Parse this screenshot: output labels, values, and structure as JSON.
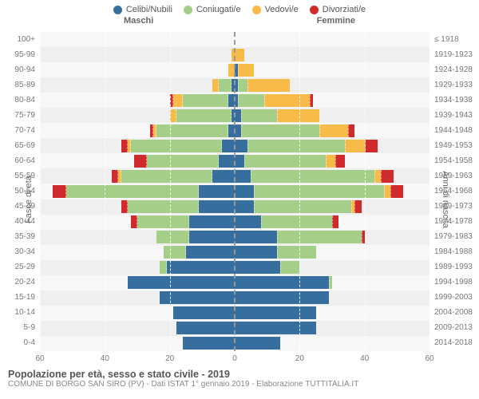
{
  "legend": [
    {
      "label": "Celibi/Nubili",
      "color": "#366f9e"
    },
    {
      "label": "Coniugati/e",
      "color": "#a5ce88"
    },
    {
      "label": "Vedovi/e",
      "color": "#f8bb4a"
    },
    {
      "label": "Divorziati/e",
      "color": "#cf2b2d"
    }
  ],
  "gender_left": "Maschi",
  "gender_right": "Femmine",
  "y_left_title": "Fasce di età",
  "y_right_title": "Anni di nascita",
  "x_ticks": [
    60,
    40,
    20,
    0,
    20,
    40,
    60
  ],
  "x_max": 60,
  "colors": {
    "bg": "#f7f7f7",
    "bg_alt": "#efefef",
    "grid": "rgba(255,255,255,0.9)",
    "center": "#999999",
    "text": "#777777"
  },
  "categories": [
    "celibi",
    "coniugati",
    "vedovi",
    "divorziati"
  ],
  "category_colors": {
    "celibi": "#366f9e",
    "coniugati": "#a5ce88",
    "vedovi": "#f8bb4a",
    "divorziati": "#cf2b2d"
  },
  "rows": [
    {
      "age": "100+",
      "birth": "≤ 1918",
      "m": [
        0,
        0,
        0,
        0
      ],
      "f": [
        0,
        0,
        0,
        0
      ]
    },
    {
      "age": "95-99",
      "birth": "1919-1923",
      "m": [
        0,
        0,
        1,
        0
      ],
      "f": [
        0,
        0,
        3,
        0
      ]
    },
    {
      "age": "90-94",
      "birth": "1924-1928",
      "m": [
        0,
        0,
        2,
        0
      ],
      "f": [
        1,
        0,
        5,
        0
      ]
    },
    {
      "age": "85-89",
      "birth": "1929-1933",
      "m": [
        1,
        4,
        2,
        0
      ],
      "f": [
        1,
        3,
        13,
        0
      ]
    },
    {
      "age": "80-84",
      "birth": "1934-1938",
      "m": [
        2,
        14,
        3,
        1
      ],
      "f": [
        1,
        8,
        14,
        1
      ]
    },
    {
      "age": "75-79",
      "birth": "1939-1943",
      "m": [
        1,
        17,
        2,
        0
      ],
      "f": [
        2,
        11,
        13,
        0
      ]
    },
    {
      "age": "70-74",
      "birth": "1944-1948",
      "m": [
        2,
        22,
        1,
        1
      ],
      "f": [
        2,
        24,
        9,
        2
      ]
    },
    {
      "age": "65-69",
      "birth": "1949-1953",
      "m": [
        4,
        28,
        1,
        2
      ],
      "f": [
        4,
        30,
        6,
        4
      ]
    },
    {
      "age": "60-64",
      "birth": "1954-1958",
      "m": [
        5,
        22,
        0,
        4
      ],
      "f": [
        3,
        25,
        3,
        3
      ]
    },
    {
      "age": "55-59",
      "birth": "1959-1963",
      "m": [
        7,
        28,
        1,
        2
      ],
      "f": [
        5,
        38,
        2,
        4
      ]
    },
    {
      "age": "50-54",
      "birth": "1964-1968",
      "m": [
        11,
        41,
        0,
        4
      ],
      "f": [
        6,
        40,
        2,
        4
      ]
    },
    {
      "age": "45-49",
      "birth": "1969-1973",
      "m": [
        11,
        22,
        0,
        2
      ],
      "f": [
        6,
        30,
        1,
        2
      ]
    },
    {
      "age": "40-44",
      "birth": "1974-1978",
      "m": [
        14,
        16,
        0,
        2
      ],
      "f": [
        8,
        22,
        0,
        2
      ]
    },
    {
      "age": "35-39",
      "birth": "1979-1983",
      "m": [
        14,
        10,
        0,
        0
      ],
      "f": [
        13,
        26,
        0,
        1
      ]
    },
    {
      "age": "30-34",
      "birth": "1984-1988",
      "m": [
        15,
        7,
        0,
        0
      ],
      "f": [
        13,
        12,
        0,
        0
      ]
    },
    {
      "age": "25-29",
      "birth": "1989-1993",
      "m": [
        21,
        2,
        0,
        0
      ],
      "f": [
        14,
        6,
        0,
        0
      ]
    },
    {
      "age": "20-24",
      "birth": "1994-1998",
      "m": [
        33,
        0,
        0,
        0
      ],
      "f": [
        29,
        1,
        0,
        0
      ]
    },
    {
      "age": "15-19",
      "birth": "1999-2003",
      "m": [
        23,
        0,
        0,
        0
      ],
      "f": [
        29,
        0,
        0,
        0
      ]
    },
    {
      "age": "10-14",
      "birth": "2004-2008",
      "m": [
        19,
        0,
        0,
        0
      ],
      "f": [
        25,
        0,
        0,
        0
      ]
    },
    {
      "age": "5-9",
      "birth": "2009-2013",
      "m": [
        18,
        0,
        0,
        0
      ],
      "f": [
        25,
        0,
        0,
        0
      ]
    },
    {
      "age": "0-4",
      "birth": "2014-2018",
      "m": [
        16,
        0,
        0,
        0
      ],
      "f": [
        14,
        0,
        0,
        0
      ]
    }
  ],
  "footer_title": "Popolazione per età, sesso e stato civile - 2019",
  "footer_sub": "COMUNE DI BORGO SAN SIRO (PV) - Dati ISTAT 1° gennaio 2019 - Elaborazione TUTTITALIA.IT"
}
